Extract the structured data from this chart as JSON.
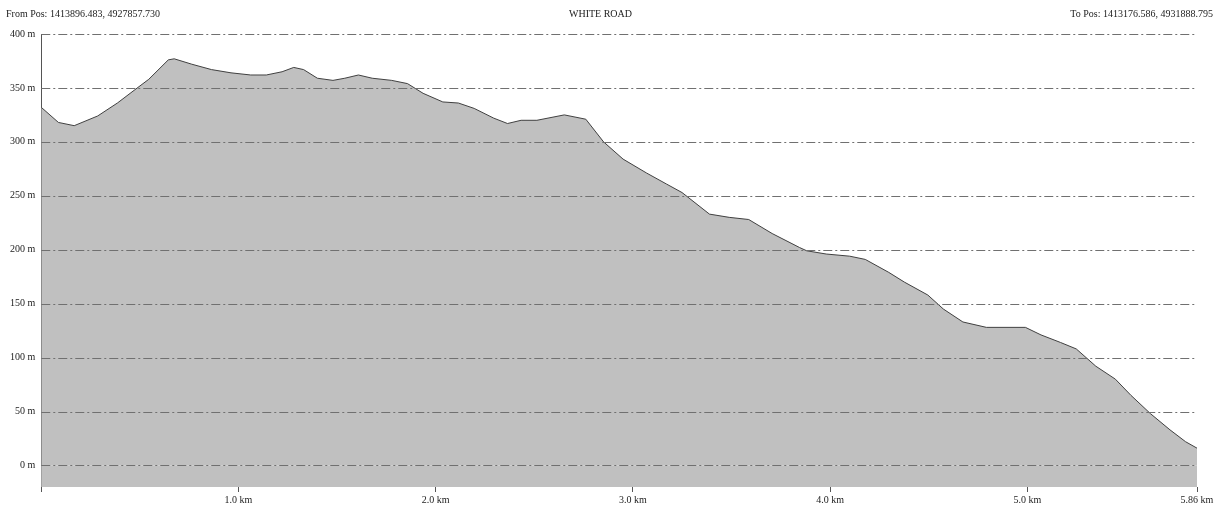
{
  "chart_data": {
    "type": "area",
    "title": "WHITE ROAD",
    "annotations": [
      "From Pos: 1413896.483, 4927857.730",
      "To Pos: 1413176.586, 4931888.795"
    ],
    "x": [
      0,
      0.087,
      0.167,
      0.286,
      0.386,
      0.465,
      0.545,
      0.644,
      0.674,
      0.763,
      0.863,
      0.962,
      1.062,
      1.141,
      1.221,
      1.28,
      1.33,
      1.4,
      1.479,
      1.539,
      1.608,
      1.678,
      1.777,
      1.857,
      1.936,
      2.036,
      2.115,
      2.195,
      2.294,
      2.364,
      2.433,
      2.513,
      2.652,
      2.761,
      2.851,
      2.95,
      3.07,
      3.169,
      3.249,
      3.388,
      3.488,
      3.587,
      3.706,
      3.845,
      3.881,
      3.98,
      4.099,
      4.178,
      4.297,
      4.376,
      4.495,
      4.574,
      4.673,
      4.792,
      4.99,
      5.069,
      5.168,
      5.248,
      5.347,
      5.446,
      5.525,
      5.624,
      5.723,
      5.802,
      5.86
    ],
    "series": [
      {
        "color": "#c0c0c0",
        "values": [
          332,
          318,
          315,
          324,
          336,
          347,
          358,
          376,
          377,
          372,
          367,
          364,
          362,
          362,
          365,
          369,
          367,
          359,
          357,
          359,
          362,
          359,
          357,
          354,
          345,
          337,
          336,
          331,
          322,
          317,
          320,
          320,
          325,
          321,
          300,
          284,
          271,
          261,
          253,
          233,
          230,
          228,
          215,
          202,
          199,
          196,
          194,
          191,
          179,
          170,
          158,
          145,
          133,
          128,
          128,
          121,
          114,
          108,
          92,
          80,
          65,
          48,
          33,
          22,
          16
        ]
      }
    ],
    "xlim": [
      0,
      5.86
    ],
    "xticks": [
      {
        "value": 0,
        "label": null
      },
      {
        "value": 1,
        "label": "1.0 km"
      },
      {
        "value": 2,
        "label": "2.0 km"
      },
      {
        "value": 3,
        "label": "3.0 km"
      },
      {
        "value": 4,
        "label": "4.0 km"
      },
      {
        "value": 5,
        "label": "5.0 km"
      },
      {
        "value": 5.86,
        "label": "5.86 km"
      }
    ],
    "ylim": [
      -20,
      400
    ],
    "yticks": [
      {
        "value": 0,
        "label": "0 m"
      },
      {
        "value": 50,
        "label": "50 m"
      },
      {
        "value": 100,
        "label": "100 m"
      },
      {
        "value": 150,
        "label": "150 m"
      },
      {
        "value": 200,
        "label": "200 m"
      },
      {
        "value": 250,
        "label": "250 m"
      },
      {
        "value": 300,
        "label": "300 m"
      },
      {
        "value": 350,
        "label": "350 m"
      },
      {
        "value": 400,
        "label": "400 m"
      }
    ],
    "bands": [
      {
        "axis": "y",
        "from": -20,
        "to": 0,
        "color": "#c0c0c0"
      }
    ],
    "grid": "y"
  }
}
